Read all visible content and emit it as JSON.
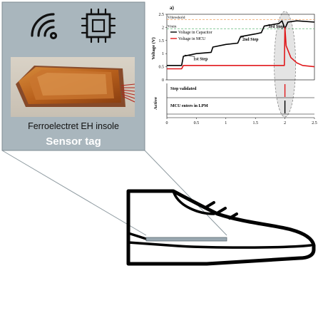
{
  "sensor_tag": {
    "caption": "Ferroelectret EH insole",
    "title": "Sensor tag",
    "icons": [
      "wifi-icon",
      "chip-icon"
    ]
  },
  "chart_data": [
    {
      "type": "line",
      "panel_label": "a)",
      "ylabel": "Voltage (V)",
      "xlabel": "",
      "xlim": [
        0,
        2.5
      ],
      "ylim": [
        0,
        2.5
      ],
      "x_ticks": [
        "0",
        "0.5",
        "1",
        "1.5",
        "2",
        "2.5"
      ],
      "y_ticks": [
        "0",
        "0.5",
        "1",
        "1.5",
        "2",
        "2.5"
      ],
      "reference_labels": [
        "Vthreshold",
        "Vmin"
      ],
      "reference_values": [
        2.3,
        1.95
      ],
      "legend": [
        "Voltage in Capacitor",
        "Voltage in MCU"
      ],
      "annotations": [
        "1st Step",
        "2nd Step",
        "3rd Step"
      ],
      "series": [
        {
          "name": "Voltage in Capacitor",
          "color": "#000000",
          "x": [
            0,
            0.25,
            0.28,
            0.5,
            0.75,
            0.78,
            1.0,
            1.2,
            1.25,
            1.5,
            1.6,
            1.65,
            1.9,
            1.95,
            2.0,
            2.05,
            2.2,
            2.5
          ],
          "y": [
            0.55,
            0.55,
            0.9,
            1.0,
            1.05,
            1.25,
            1.35,
            1.4,
            1.65,
            1.75,
            1.8,
            2.05,
            2.15,
            2.25,
            1.95,
            2.2,
            2.25,
            2.2
          ]
        },
        {
          "name": "Voltage in MCU",
          "color": "#e0191c",
          "x": [
            0,
            0.25,
            0.28,
            1.99,
            2.0,
            2.02,
            2.1,
            2.2,
            2.3,
            2.5
          ],
          "y": [
            0.42,
            0.42,
            0.55,
            0.55,
            2.0,
            1.3,
            0.85,
            0.65,
            0.55,
            0.5
          ]
        }
      ]
    },
    {
      "type": "line",
      "ylabel": "Active",
      "xlim": [
        0,
        2.5
      ],
      "lanes": [
        "Step validated",
        "MCU enters in LPM"
      ],
      "events_x": [
        2.0,
        2.0
      ]
    }
  ]
}
